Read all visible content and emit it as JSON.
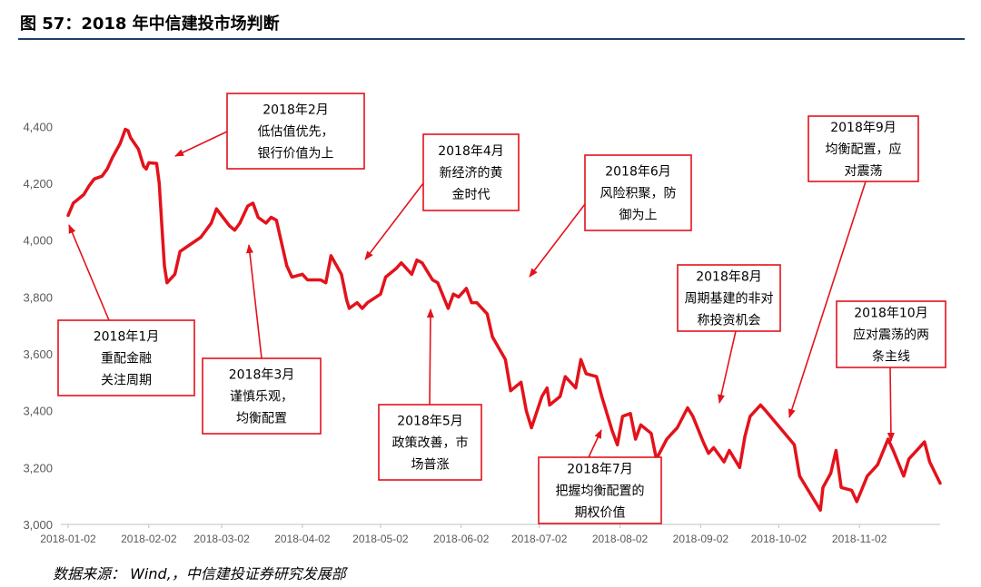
{
  "title": "图 57：2018 年中信建投市场判断",
  "source": "数据来源：  Wind,，中信建投证券研究发展部",
  "colors": {
    "line": "#e3121b",
    "box_border": "#e3121b",
    "title_rule": "#1f3f66",
    "axis_text": "#595959"
  },
  "chart_data": {
    "type": "line",
    "title": "",
    "xlabel": "",
    "ylabel": "",
    "ylim": [
      3000,
      4500
    ],
    "yticks": [
      3000,
      3200,
      3400,
      3600,
      3800,
      4000,
      4200,
      4400
    ],
    "ytick_labels": [
      "3,000",
      "3,200",
      "3,400",
      "3,600",
      "3,800",
      "4,000",
      "4,200",
      "4,400"
    ],
    "xticks": [
      "2018-01-02",
      "2018-02-02",
      "2018-03-02",
      "2018-04-02",
      "2018-05-02",
      "2018-06-02",
      "2018-07-02",
      "2018-08-02",
      "2018-09-02",
      "2018-10-02",
      "2018-11-02"
    ],
    "xlim": [
      "2018-01-02",
      "2018-12-03"
    ],
    "grid": false,
    "series": [
      {
        "x": [
          "2018-01-02",
          "2018-01-04",
          "2018-01-08",
          "2018-01-10",
          "2018-01-12",
          "2018-01-15",
          "2018-01-17",
          "2018-01-19",
          "2018-01-22",
          "2018-01-24",
          "2018-01-25",
          "2018-01-26",
          "2018-01-29",
          "2018-01-30",
          "2018-01-31",
          "2018-02-01",
          "2018-02-02",
          "2018-02-05",
          "2018-02-06",
          "2018-02-07",
          "2018-02-08",
          "2018-02-09",
          "2018-02-12",
          "2018-02-14",
          "2018-02-22",
          "2018-02-26",
          "2018-02-28",
          "2018-03-05",
          "2018-03-07",
          "2018-03-09",
          "2018-03-12",
          "2018-03-14",
          "2018-03-16",
          "2018-03-19",
          "2018-03-21",
          "2018-03-23",
          "2018-03-27",
          "2018-03-29",
          "2018-04-02",
          "2018-04-04",
          "2018-04-09",
          "2018-04-11",
          "2018-04-13",
          "2018-04-17",
          "2018-04-19",
          "2018-04-20",
          "2018-04-23",
          "2018-04-25",
          "2018-04-27",
          "2018-05-02",
          "2018-05-04",
          "2018-05-08",
          "2018-05-10",
          "2018-05-14",
          "2018-05-16",
          "2018-05-18",
          "2018-05-22",
          "2018-05-24",
          "2018-05-28",
          "2018-05-30",
          "2018-06-01",
          "2018-06-04",
          "2018-06-06",
          "2018-06-08",
          "2018-06-12",
          "2018-06-14",
          "2018-06-19",
          "2018-06-21",
          "2018-06-25",
          "2018-06-27",
          "2018-06-29",
          "2018-07-03",
          "2018-07-05",
          "2018-07-06",
          "2018-07-10",
          "2018-07-12",
          "2018-07-16",
          "2018-07-18",
          "2018-07-20",
          "2018-07-24",
          "2018-07-26",
          "2018-07-30",
          "2018-08-01",
          "2018-08-03",
          "2018-08-06",
          "2018-08-08",
          "2018-08-10",
          "2018-08-14",
          "2018-08-16",
          "2018-08-20",
          "2018-08-22",
          "2018-08-24",
          "2018-08-28",
          "2018-08-30",
          "2018-09-03",
          "2018-09-05",
          "2018-09-07",
          "2018-09-11",
          "2018-09-13",
          "2018-09-17",
          "2018-09-19",
          "2018-09-21",
          "2018-09-25",
          "2018-09-27",
          "2018-10-08",
          "2018-10-10",
          "2018-10-12",
          "2018-10-16",
          "2018-10-18",
          "2018-10-19",
          "2018-10-22",
          "2018-10-24",
          "2018-10-26",
          "2018-10-30",
          "2018-11-01",
          "2018-11-05",
          "2018-11-07",
          "2018-11-09",
          "2018-11-13",
          "2018-11-15",
          "2018-11-19",
          "2018-11-21",
          "2018-11-23",
          "2018-11-27",
          "2018-11-29",
          "2018-12-03"
        ],
        "y": [
          4087,
          4130,
          4160,
          4190,
          4215,
          4225,
          4250,
          4290,
          4340,
          4390,
          4385,
          4360,
          4320,
          4290,
          4260,
          4250,
          4272,
          4270,
          4200,
          4050,
          3910,
          3850,
          3880,
          3960,
          4010,
          4060,
          4110,
          4050,
          4035,
          4060,
          4120,
          4130,
          4080,
          4060,
          4080,
          4070,
          3910,
          3870,
          3880,
          3860,
          3860,
          3850,
          3945,
          3880,
          3790,
          3760,
          3780,
          3760,
          3780,
          3810,
          3870,
          3900,
          3920,
          3880,
          3930,
          3920,
          3860,
          3850,
          3760,
          3810,
          3800,
          3830,
          3780,
          3780,
          3740,
          3660,
          3580,
          3470,
          3500,
          3400,
          3340,
          3450,
          3480,
          3420,
          3450,
          3520,
          3480,
          3580,
          3530,
          3520,
          3450,
          3330,
          3280,
          3380,
          3390,
          3300,
          3350,
          3320,
          3230,
          3300,
          3320,
          3340,
          3410,
          3380,
          3290,
          3250,
          3270,
          3220,
          3260,
          3200,
          3310,
          3380,
          3420,
          3400,
          3280,
          3170,
          3140,
          3080,
          3050,
          3130,
          3180,
          3260,
          3130,
          3120,
          3080,
          3170,
          3190,
          3210,
          3300,
          3260,
          3170,
          3230,
          3250,
          3290,
          3220,
          3145
        ]
      }
    ],
    "annotations": [
      {
        "lines": [
          "2018年1月",
          "重配金融",
          "关注周期"
        ]
      },
      {
        "lines": [
          "2018年2月",
          "低估值优先，",
          "银行价值为上"
        ]
      },
      {
        "lines": [
          "2018年3月",
          "谨慎乐观，",
          "均衡配置"
        ]
      },
      {
        "lines": [
          "2018年4月",
          "新经济的黄",
          "金时代"
        ]
      },
      {
        "lines": [
          "2018年5月",
          "政策改善，市",
          "场普涨"
        ]
      },
      {
        "lines": [
          "2018年6月",
          "风险积聚，防",
          "御为上"
        ]
      },
      {
        "lines": [
          "2018年7月",
          "把握均衡配置的",
          "期权价值"
        ]
      },
      {
        "lines": [
          "2018年8月",
          "周期基建的非对",
          "称投资机会"
        ]
      },
      {
        "lines": [
          "2018年9月",
          "均衡配置，应",
          "对震荡"
        ]
      },
      {
        "lines": [
          "2018年10月",
          "应对震荡的两",
          "条主线"
        ]
      }
    ]
  }
}
